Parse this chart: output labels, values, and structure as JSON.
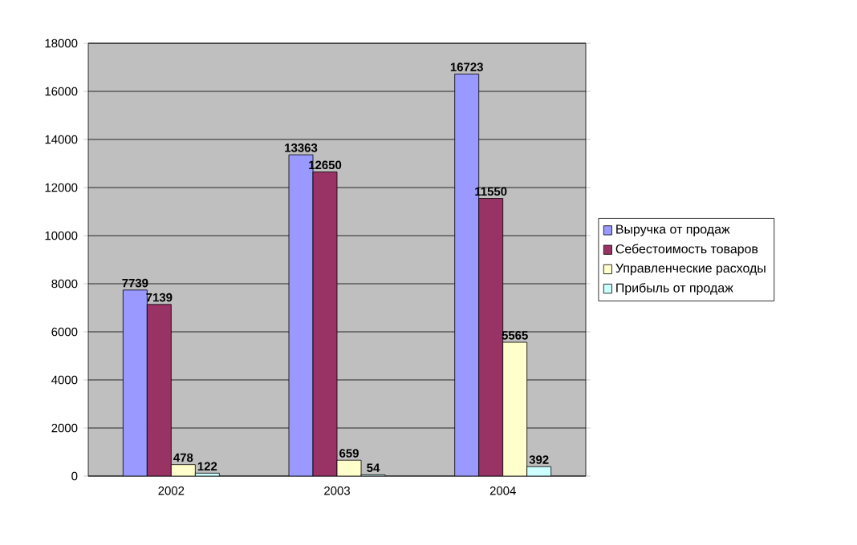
{
  "chart_data": {
    "type": "bar",
    "categories": [
      "2002",
      "2003",
      "2004"
    ],
    "series": [
      {
        "name": "Выручка от продаж",
        "color": "#9999ff",
        "values": [
          7739,
          13363,
          16723
        ]
      },
      {
        "name": "Себестоимость товаров",
        "color": "#993366",
        "values": [
          7139,
          12650,
          11550
        ]
      },
      {
        "name": "Управленческие расходы",
        "color": "#ffffcc",
        "values": [
          478,
          659,
          5565
        ]
      },
      {
        "name": "Прибыль от продаж",
        "color": "#ccffff",
        "values": [
          122,
          54,
          392
        ]
      }
    ],
    "ylim": [
      0,
      18000
    ],
    "yticks": [
      0,
      2000,
      4000,
      6000,
      8000,
      10000,
      12000,
      14000,
      16000,
      18000
    ],
    "grid": "y",
    "legend": "right",
    "data_labels": true
  }
}
